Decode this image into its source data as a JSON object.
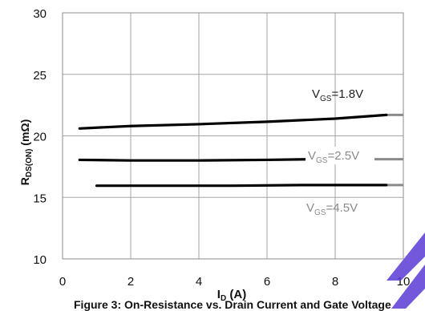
{
  "chart_data": {
    "type": "line",
    "title": "",
    "xlabel_main": "I",
    "xlabel_sub": "D",
    "xlabel_unit": " (A)",
    "ylabel_main": "R",
    "ylabel_sub": "DS(ON)",
    "ylabel_unit": " (mΩ)",
    "xlim": [
      0,
      10
    ],
    "ylim": [
      10,
      30
    ],
    "xticks": [
      "0",
      "2",
      "4",
      "6",
      "8",
      "10"
    ],
    "yticks": [
      "10",
      "15",
      "20",
      "25",
      "30"
    ],
    "grid": true,
    "series": [
      {
        "name": "VGS=1.8V",
        "color": "#000000",
        "x": [
          0.5,
          2,
          4,
          6,
          8,
          9.5
        ],
        "y": [
          20.6,
          20.8,
          20.95,
          21.15,
          21.4,
          21.7
        ]
      },
      {
        "name": "VGS=2.5V",
        "color": "#000000",
        "x": [
          0.5,
          2,
          4,
          6,
          7.3
        ],
        "y": [
          18.05,
          18.0,
          18.0,
          18.05,
          18.1
        ]
      },
      {
        "name": "VGS=4.5V",
        "color": "#000000",
        "x": [
          1,
          3,
          5,
          7,
          9.5
        ],
        "y": [
          15.95,
          15.95,
          15.95,
          16.0,
          16.0
        ]
      }
    ],
    "annotations": [
      {
        "main": "V",
        "sub": "GS",
        "rest": "=1.8V",
        "color": "#222222"
      },
      {
        "main": "V",
        "sub": "GS",
        "rest": "=2.5V",
        "color": "#8a8a8a"
      },
      {
        "main": "V",
        "sub": "GS",
        "rest": "=4.5V",
        "color": "#8a8a8a"
      }
    ]
  },
  "caption": "Figure 3: On-Resistance vs. Drain Current and Gate Voltage"
}
